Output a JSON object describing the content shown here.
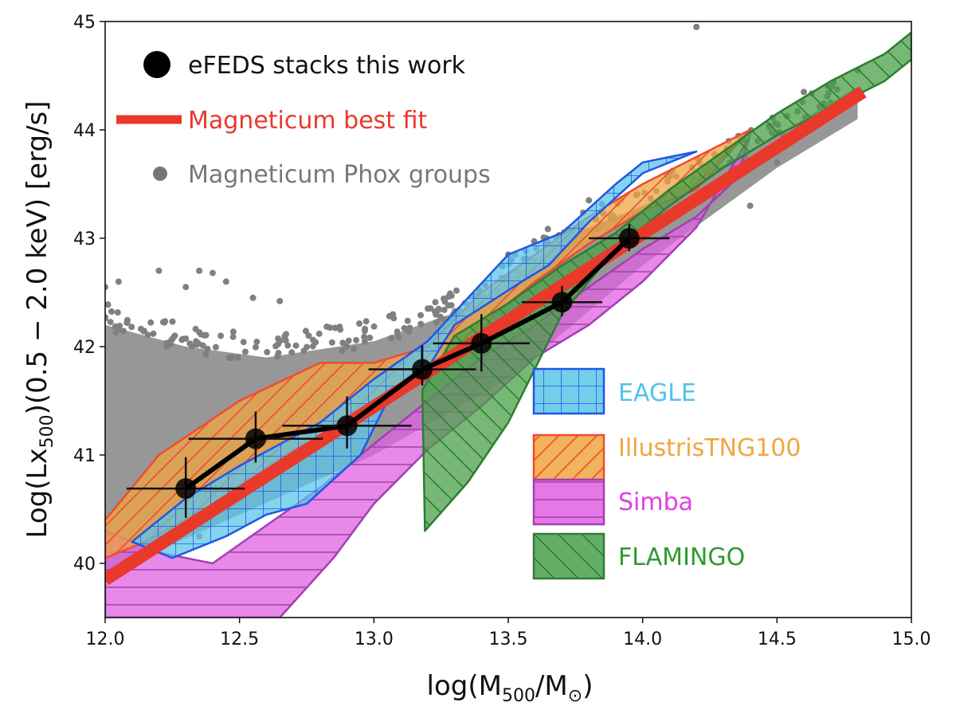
{
  "chart_data": {
    "type": "scatter",
    "xlabel": "log(M500/M⊙)",
    "ylabel": "Log(Lx500)(0.5 − 2.0 keV) [erg/s]",
    "xlim": [
      12.0,
      15.0
    ],
    "ylim": [
      39.5,
      45.0
    ],
    "xticks": [
      "12.0",
      "12.5",
      "13.0",
      "13.5",
      "14.0",
      "14.5",
      "15.0"
    ],
    "yticks": [
      "40",
      "41",
      "42",
      "43",
      "44",
      "45"
    ],
    "grid": false,
    "legend_top": [
      {
        "label": "eFEDS stacks this work",
        "color": "#000000",
        "marker": "circle-large"
      },
      {
        "label": "Magneticum best fit",
        "color": "#e8392a",
        "marker": "thick-line"
      },
      {
        "label": "Magneticum Phox groups",
        "color": "#777777",
        "marker": "circle-small"
      }
    ],
    "legend_bottom": [
      {
        "label": "EAGLE",
        "face": "#5bc6e8",
        "edge": "#2255e6",
        "text_color": "#4fc3ec",
        "hatch": "grid"
      },
      {
        "label": "IllustrisTNG100",
        "face": "#f0a640",
        "edge": "#f04a30",
        "text_color": "#f0a640",
        "hatch": "diag"
      },
      {
        "label": "Simba",
        "face": "#e060e0",
        "edge": "#a040b0",
        "text_color": "#e040e0",
        "hatch": "horiz"
      },
      {
        "label": "FLAMINGO",
        "face": "#4aa04a",
        "edge": "#2e7d32",
        "text_color": "#2e9a2e",
        "hatch": "back"
      }
    ],
    "efeds_points": [
      {
        "x": 12.3,
        "y": 40.69,
        "xerr": [
          0.22,
          0.22
        ],
        "yerr": [
          0.27,
          0.29
        ]
      },
      {
        "x": 12.56,
        "y": 41.15,
        "xerr": [
          0.25,
          0.25
        ],
        "yerr": [
          0.22,
          0.25
        ]
      },
      {
        "x": 12.9,
        "y": 41.27,
        "xerr": [
          0.24,
          0.24
        ],
        "yerr": [
          0.21,
          0.27
        ]
      },
      {
        "x": 13.18,
        "y": 41.79,
        "xerr": [
          0.2,
          0.2
        ],
        "yerr": [
          0.15,
          0.22
        ]
      },
      {
        "x": 13.4,
        "y": 42.03,
        "xerr": [
          0.18,
          0.18
        ],
        "yerr": [
          0.26,
          0.27
        ]
      },
      {
        "x": 13.7,
        "y": 42.41,
        "xerr": [
          0.15,
          0.15
        ],
        "yerr": [
          0.13,
          0.15
        ]
      },
      {
        "x": 13.95,
        "y": 43.0,
        "xerr": [
          0.15,
          0.15
        ],
        "yerr": [
          0.12,
          0.13
        ]
      }
    ],
    "magneticum_fit": {
      "x": [
        12.0,
        14.82
      ],
      "y": [
        39.85,
        44.35
      ],
      "color": "#e8392a"
    },
    "magneticum_cloud": {
      "lower": [
        [
          12.0,
          39.9
        ],
        [
          12.5,
          40.45
        ],
        [
          13.0,
          41.0
        ],
        [
          13.5,
          41.7
        ],
        [
          14.0,
          42.75
        ],
        [
          14.5,
          43.65
        ],
        [
          14.8,
          44.1
        ]
      ],
      "upper": [
        [
          12.0,
          42.2
        ],
        [
          12.3,
          42.0
        ],
        [
          12.6,
          41.9
        ],
        [
          13.0,
          42.05
        ],
        [
          13.4,
          42.4
        ],
        [
          13.7,
          43.0
        ],
        [
          14.0,
          43.3
        ],
        [
          14.4,
          43.8
        ],
        [
          14.8,
          44.4
        ]
      ],
      "outliers": [
        [
          12.0,
          42.55
        ],
        [
          12.05,
          42.6
        ],
        [
          12.2,
          42.7
        ],
        [
          12.3,
          42.55
        ],
        [
          12.35,
          42.7
        ],
        [
          12.4,
          42.68
        ],
        [
          12.45,
          42.6
        ],
        [
          12.55,
          42.45
        ],
        [
          12.65,
          42.42
        ],
        [
          12.35,
          40.25
        ],
        [
          13.5,
          42.85
        ],
        [
          13.8,
          43.35
        ],
        [
          14.2,
          43.5
        ],
        [
          14.4,
          43.3
        ],
        [
          14.5,
          43.7
        ],
        [
          14.6,
          44.35
        ],
        [
          14.8,
          44.55
        ],
        [
          14.7,
          44.25
        ],
        [
          14.2,
          44.95
        ]
      ]
    },
    "eagle": {
      "upper": [
        [
          12.1,
          40.2
        ],
        [
          12.3,
          40.6
        ],
        [
          12.5,
          40.9
        ],
        [
          12.8,
          41.3
        ],
        [
          13.0,
          41.7
        ],
        [
          13.2,
          42.05
        ],
        [
          13.35,
          42.45
        ],
        [
          13.5,
          42.85
        ],
        [
          13.7,
          43.05
        ],
        [
          13.9,
          43.5
        ],
        [
          14.0,
          43.7
        ],
        [
          14.1,
          43.75
        ],
        [
          14.2,
          43.8
        ]
      ],
      "lower": [
        [
          14.2,
          43.8
        ],
        [
          14.0,
          43.6
        ],
        [
          13.8,
          43.15
        ],
        [
          13.65,
          42.75
        ],
        [
          13.55,
          42.6
        ],
        [
          13.3,
          42.2
        ],
        [
          13.2,
          41.8
        ],
        [
          13.05,
          41.5
        ],
        [
          12.95,
          41.0
        ],
        [
          12.75,
          40.55
        ],
        [
          12.6,
          40.45
        ],
        [
          12.45,
          40.25
        ],
        [
          12.25,
          40.05
        ],
        [
          12.1,
          40.2
        ]
      ]
    },
    "tng": {
      "upper": [
        [
          12.0,
          40.4
        ],
        [
          12.2,
          41.0
        ],
        [
          12.5,
          41.5
        ],
        [
          12.8,
          41.85
        ],
        [
          13.0,
          41.85
        ],
        [
          13.2,
          42.0
        ],
        [
          13.4,
          42.5
        ],
        [
          13.6,
          42.85
        ],
        [
          13.8,
          43.2
        ],
        [
          14.0,
          43.5
        ],
        [
          14.2,
          43.75
        ],
        [
          14.4,
          44.0
        ]
      ],
      "lower": [
        [
          14.4,
          44.0
        ],
        [
          14.2,
          43.45
        ],
        [
          14.0,
          43.25
        ],
        [
          13.8,
          42.95
        ],
        [
          13.6,
          42.6
        ],
        [
          13.45,
          42.3
        ],
        [
          13.3,
          41.85
        ],
        [
          13.1,
          41.6
        ],
        [
          12.95,
          41.3
        ],
        [
          12.7,
          41.05
        ],
        [
          12.4,
          40.55
        ],
        [
          12.15,
          40.2
        ],
        [
          12.0,
          40.05
        ]
      ]
    },
    "simba": {
      "upper": [
        [
          12.0,
          40.3
        ],
        [
          12.2,
          40.1
        ],
        [
          12.4,
          40.0
        ],
        [
          12.6,
          40.35
        ],
        [
          12.8,
          40.7
        ],
        [
          13.0,
          41.1
        ],
        [
          13.2,
          41.5
        ],
        [
          13.4,
          41.9
        ],
        [
          13.6,
          42.2
        ],
        [
          13.8,
          42.55
        ],
        [
          14.0,
          42.9
        ],
        [
          14.2,
          43.2
        ],
        [
          14.35,
          43.55
        ],
        [
          14.4,
          43.95
        ]
      ],
      "lower": [
        [
          14.4,
          43.95
        ],
        [
          14.2,
          43.1
        ],
        [
          14.0,
          42.6
        ],
        [
          13.8,
          42.2
        ],
        [
          13.6,
          41.9
        ],
        [
          13.4,
          41.45
        ],
        [
          13.2,
          41.05
        ],
        [
          13.0,
          40.55
        ],
        [
          12.85,
          40.05
        ],
        [
          12.65,
          39.5
        ],
        [
          12.0,
          39.5
        ]
      ]
    },
    "flamingo": {
      "upper": [
        [
          13.18,
          41.6
        ],
        [
          13.3,
          42.1
        ],
        [
          13.5,
          42.4
        ],
        [
          13.7,
          42.75
        ],
        [
          13.9,
          43.05
        ],
        [
          14.1,
          43.45
        ],
        [
          14.3,
          43.8
        ],
        [
          14.5,
          44.15
        ],
        [
          14.7,
          44.45
        ],
        [
          14.9,
          44.7
        ],
        [
          15.0,
          44.9
        ]
      ],
      "lower": [
        [
          15.0,
          44.65
        ],
        [
          14.9,
          44.45
        ],
        [
          14.7,
          44.2
        ],
        [
          14.5,
          43.95
        ],
        [
          14.3,
          43.65
        ],
        [
          14.1,
          43.3
        ],
        [
          13.9,
          42.9
        ],
        [
          13.7,
          42.3
        ],
        [
          13.5,
          41.3
        ],
        [
          13.35,
          40.75
        ],
        [
          13.19,
          40.3
        ]
      ]
    }
  }
}
